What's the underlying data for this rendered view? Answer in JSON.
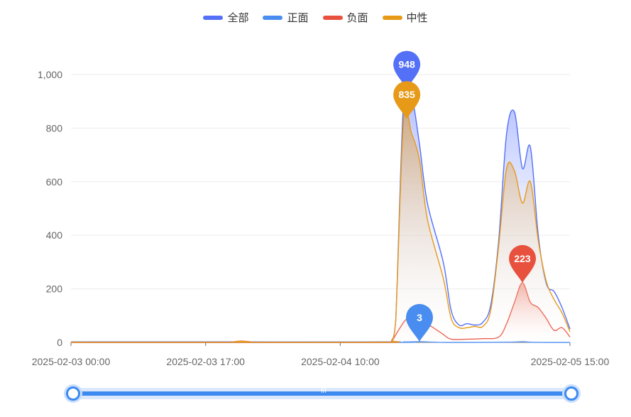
{
  "legend": [
    {
      "name": "全部",
      "color": "#5470f6"
    },
    {
      "name": "正面",
      "color": "#4a8df0"
    },
    {
      "name": "负面",
      "color": "#e8513d"
    },
    {
      "name": "中性",
      "color": "#e69a17"
    }
  ],
  "chart_data": {
    "type": "area",
    "x_ticks": [
      "2025-02-03 00:00",
      "2025-02-03 17:00",
      "2025-02-04 10:00",
      "2025-02-05 15:00"
    ],
    "x_tick_hours": [
      0,
      17,
      34,
      63
    ],
    "x_range_hours": [
      0,
      63
    ],
    "ylim": [
      0,
      1000
    ],
    "yticks": [
      0,
      200,
      400,
      600,
      800,
      1000
    ],
    "ytick_labels": [
      "0",
      "200",
      "400",
      "600",
      "800",
      "1,000"
    ],
    "grid": true,
    "legend_position": "top-center",
    "series": [
      {
        "name": "全部",
        "color": "#5470f6",
        "points": [
          [
            0,
            2
          ],
          [
            20,
            2
          ],
          [
            40,
            2
          ],
          [
            40.5,
            8
          ],
          [
            41,
            80
          ],
          [
            42,
            900
          ],
          [
            43,
            920
          ],
          [
            44,
            740
          ],
          [
            45,
            520
          ],
          [
            47,
            300
          ],
          [
            48,
            120
          ],
          [
            49,
            65
          ],
          [
            50,
            70
          ],
          [
            51,
            65
          ],
          [
            52,
            75
          ],
          [
            53,
            140
          ],
          [
            54,
            380
          ],
          [
            55,
            780
          ],
          [
            56,
            860
          ],
          [
            57,
            650
          ],
          [
            58,
            730
          ],
          [
            59,
            400
          ],
          [
            60,
            220
          ],
          [
            61,
            190
          ],
          [
            62,
            130
          ],
          [
            63,
            50
          ]
        ]
      },
      {
        "name": "正面",
        "color": "#4a8df0",
        "points": [
          [
            0,
            0
          ],
          [
            40,
            0
          ],
          [
            42,
            2
          ],
          [
            44,
            3
          ],
          [
            46,
            1
          ],
          [
            48,
            0
          ],
          [
            55,
            1
          ],
          [
            57,
            3
          ],
          [
            58,
            1
          ],
          [
            60,
            0
          ],
          [
            63,
            0
          ]
        ]
      },
      {
        "name": "负面",
        "color": "#e8513d",
        "points": [
          [
            0,
            0
          ],
          [
            21,
            0
          ],
          [
            21.5,
            5
          ],
          [
            22,
            0
          ],
          [
            40,
            0
          ],
          [
            40.5,
            5
          ],
          [
            42,
            75
          ],
          [
            43,
            100
          ],
          [
            44,
            95
          ],
          [
            45,
            70
          ],
          [
            46,
            50
          ],
          [
            47,
            30
          ],
          [
            48,
            12
          ],
          [
            50,
            12
          ],
          [
            52,
            14
          ],
          [
            54,
            20
          ],
          [
            55,
            70
          ],
          [
            56,
            150
          ],
          [
            57,
            223
          ],
          [
            58,
            150
          ],
          [
            59,
            130
          ],
          [
            60,
            90
          ],
          [
            61,
            45
          ],
          [
            62,
            55
          ],
          [
            63,
            20
          ]
        ]
      },
      {
        "name": "中性",
        "color": "#e69a17",
        "points": [
          [
            0,
            1
          ],
          [
            21,
            1
          ],
          [
            21.5,
            4
          ],
          [
            22,
            1
          ],
          [
            40,
            1
          ],
          [
            40.5,
            8
          ],
          [
            41,
            80
          ],
          [
            42,
            835
          ],
          [
            43,
            780
          ],
          [
            44,
            680
          ],
          [
            45,
            460
          ],
          [
            47,
            240
          ],
          [
            48,
            90
          ],
          [
            49,
            55
          ],
          [
            50,
            55
          ],
          [
            51,
            60
          ],
          [
            52,
            60
          ],
          [
            53,
            120
          ],
          [
            54,
            360
          ],
          [
            55,
            650
          ],
          [
            56,
            640
          ],
          [
            57,
            520
          ],
          [
            58,
            600
          ],
          [
            59,
            380
          ],
          [
            60,
            230
          ],
          [
            61,
            160
          ],
          [
            62,
            110
          ],
          [
            63,
            40
          ]
        ]
      }
    ],
    "markers": [
      {
        "series": "全部",
        "label": "948",
        "value": 948,
        "x": 42.4,
        "color": "#5470f6"
      },
      {
        "series": "中性",
        "label": "835",
        "value": 835,
        "x": 42.4,
        "color": "#e69a17"
      },
      {
        "series": "正面",
        "label": "3",
        "value": 3,
        "x": 44,
        "color": "#4a8df0"
      },
      {
        "series": "负面",
        "label": "223",
        "value": 223,
        "x": 57,
        "color": "#e8513d"
      }
    ]
  },
  "zoom": {
    "start_percent": 0,
    "end_percent": 100,
    "grip": "|||"
  }
}
